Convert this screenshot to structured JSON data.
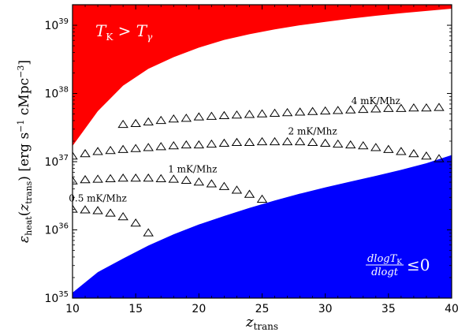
{
  "chart_data": {
    "type": "area",
    "xlabel": "z",
    "xlabel_sub": "trans",
    "ylabel_parts": [
      "ε",
      "heat",
      "(",
      "z",
      "trans",
      ") [erg s",
      "−1",
      " cMpc",
      "−3",
      "]"
    ],
    "xlim": [
      10,
      40
    ],
    "ylim": [
      1e+35,
      2e+39
    ],
    "yscale": "log",
    "x_ticks": [
      10,
      15,
      20,
      25,
      30,
      35,
      40
    ],
    "x_tick_labels": [
      "10",
      "15",
      "20",
      "25",
      "30",
      "35",
      "40"
    ],
    "y_ticks": [
      1e+35,
      1e+36,
      1e+37,
      1e+38,
      1e+39
    ],
    "y_tick_labels": [
      {
        "base": "10",
        "exp": "35"
      },
      {
        "base": "10",
        "exp": "36"
      },
      {
        "base": "10",
        "exp": "37"
      },
      {
        "base": "10",
        "exp": "38"
      },
      {
        "base": "10",
        "exp": "39"
      }
    ],
    "regions": [
      {
        "name": "heated",
        "label_main": "T",
        "label_sub1": "K",
        "label_op": " > ",
        "label_main2": "T",
        "label_sub2": "γ",
        "color": "#ff0000",
        "boundary_x": [
          10,
          12,
          14,
          16,
          18,
          20,
          22,
          24,
          26,
          28,
          30,
          32,
          34,
          36,
          38,
          40
        ],
        "boundary_y": [
          1.7e+37,
          5.5e+37,
          1.3e+38,
          2.3e+38,
          3.4e+38,
          4.7e+38,
          6.1e+38,
          7.4e+38,
          8.7e+38,
          1e+39,
          1.12e+39,
          1.25e+39,
          1.38e+39,
          1.5e+39,
          1.62e+39,
          1.75e+39
        ],
        "fill": "above"
      },
      {
        "name": "cooling",
        "label_num": "dlogT",
        "label_num_sub": "K",
        "label_den": "dlogt",
        "label_op": "≤0",
        "color": "#0000ff",
        "boundary_x": [
          10,
          12,
          14,
          16,
          18,
          20,
          22,
          24,
          26,
          28,
          30,
          32,
          34,
          36,
          38,
          40
        ],
        "boundary_y": [
          1.2e+35,
          2.4e+35,
          3.8e+35,
          5.9e+35,
          8.6e+35,
          1.2e+36,
          1.6e+36,
          2.1e+36,
          2.7e+36,
          3.4e+36,
          4.2e+36,
          5.1e+36,
          6.2e+36,
          7.6e+36,
          9.5e+36,
          1.25e+37
        ],
        "fill": "below"
      }
    ],
    "series": [
      {
        "name": "4 mK/Mhz",
        "marker": "triangle",
        "x": [
          14,
          15,
          16,
          17,
          18,
          19,
          20,
          21,
          22,
          23,
          24,
          25,
          26,
          27,
          28,
          29,
          30,
          31,
          32,
          33,
          34,
          35,
          36,
          37,
          38,
          39
        ],
        "y": [
          3.5e+37,
          3.6e+37,
          3.8e+37,
          4e+37,
          4.2e+37,
          4.3e+37,
          4.5e+37,
          4.6e+37,
          4.7e+37,
          4.8e+37,
          4.9e+37,
          5e+37,
          5.1e+37,
          5.2e+37,
          5.3e+37,
          5.4e+37,
          5.5e+37,
          5.6e+37,
          5.7e+37,
          5.8e+37,
          5.9e+37,
          6e+37,
          6e+37,
          6.1e+37,
          6.1e+37,
          6.2e+37
        ]
      },
      {
        "name": "2 mK/Mhz",
        "marker": "triangle",
        "x": [
          10,
          11,
          12,
          13,
          14,
          15,
          16,
          17,
          18,
          19,
          20,
          21,
          22,
          23,
          24,
          25,
          26,
          27,
          28,
          29,
          30,
          31,
          32,
          33,
          34,
          35,
          36,
          37,
          38,
          39
        ],
        "y": [
          1.2e+37,
          1.3e+37,
          1.4e+37,
          1.45e+37,
          1.5e+37,
          1.55e+37,
          1.6e+37,
          1.65e+37,
          1.7e+37,
          1.75e+37,
          1.75e+37,
          1.8e+37,
          1.85e+37,
          1.9e+37,
          1.9e+37,
          1.95e+37,
          1.95e+37,
          1.95e+37,
          1.95e+37,
          1.9e+37,
          1.85e+37,
          1.8e+37,
          1.75e+37,
          1.7e+37,
          1.6e+37,
          1.5e+37,
          1.4e+37,
          1.3e+37,
          1.2e+37,
          1.1e+37
        ]
      },
      {
        "name": "1 mK/Mhz",
        "marker": "triangle",
        "x": [
          10,
          11,
          12,
          13,
          14,
          15,
          16,
          17,
          18,
          19,
          20,
          21,
          22,
          23,
          24,
          25
        ],
        "y": [
          5.2e+36,
          5.4e+36,
          5.5e+36,
          5.6e+36,
          5.7e+36,
          5.7e+36,
          5.7e+36,
          5.6e+36,
          5.5e+36,
          5.3e+36,
          5e+36,
          4.7e+36,
          4.3e+36,
          3.8e+36,
          3.3e+36,
          2.8e+36
        ]
      },
      {
        "name": "0.5 mK/Mhz",
        "marker": "triangle",
        "x": [
          10,
          11,
          12,
          13,
          14,
          15,
          16
        ],
        "y": [
          2e+36,
          1.95e+36,
          1.9e+36,
          1.75e+36,
          1.55e+36,
          1.25e+36,
          9e+35
        ]
      }
    ],
    "annotations": [
      {
        "text": "4 mK/Mhz",
        "x": 34,
        "y": 7e+37
      },
      {
        "text": "2 mK/Mhz",
        "x": 29,
        "y": 2.5e+37
      },
      {
        "text": "1 mK/Mhz",
        "x": 19.5,
        "y": 7e+36
      },
      {
        "text": "0.5 mK/Mhz",
        "x": 12,
        "y": 2.6e+36
      }
    ]
  }
}
